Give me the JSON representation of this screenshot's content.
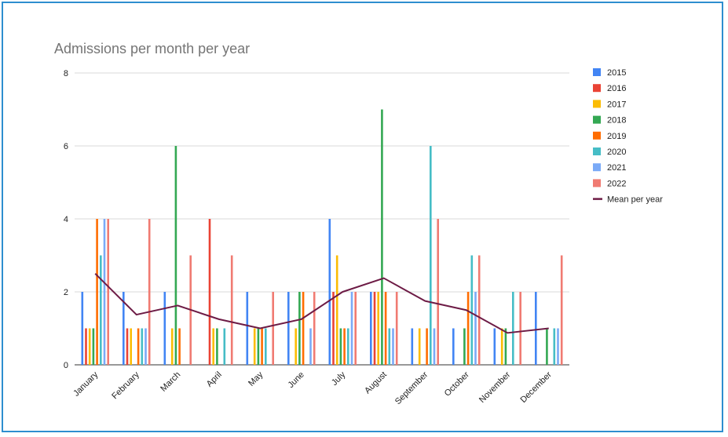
{
  "chart_data": {
    "type": "bar",
    "title": "Admissions per month per year",
    "xlabel": "",
    "ylabel": "",
    "ylim": [
      0,
      8
    ],
    "yticks": [
      "0",
      "2",
      "4",
      "6",
      "8"
    ],
    "grid": true,
    "legend_position": "right",
    "categories": [
      "January",
      "February",
      "March",
      "April",
      "May",
      "June",
      "July",
      "August",
      "September",
      "October",
      "November",
      "December"
    ],
    "series": [
      {
        "name": "2015",
        "color": "#4285f4",
        "values": [
          2,
          2,
          2,
          0,
          2,
          2,
          4,
          2,
          1,
          1,
          1,
          2
        ]
      },
      {
        "name": "2016",
        "color": "#ea4335",
        "values": [
          1,
          1,
          0,
          4,
          0,
          0,
          2,
          2,
          0,
          0,
          0,
          0
        ]
      },
      {
        "name": "2017",
        "color": "#fbbc04",
        "values": [
          1,
          1,
          1,
          1,
          1,
          1,
          3,
          2,
          1,
          0,
          1,
          0
        ]
      },
      {
        "name": "2018",
        "color": "#34a853",
        "values": [
          1,
          0,
          6,
          1,
          1,
          2,
          1,
          7,
          0,
          1,
          1,
          1
        ]
      },
      {
        "name": "2019",
        "color": "#ff6d01",
        "values": [
          4,
          1,
          1,
          0,
          1,
          2,
          1,
          2,
          1,
          2,
          0,
          0
        ]
      },
      {
        "name": "2020",
        "color": "#46bdc6",
        "values": [
          3,
          1,
          0,
          1,
          1,
          0,
          1,
          1,
          6,
          3,
          2,
          1
        ]
      },
      {
        "name": "2021",
        "color": "#7baaf7",
        "values": [
          4,
          1,
          0,
          0,
          0,
          1,
          2,
          1,
          1,
          2,
          0,
          1
        ]
      },
      {
        "name": "2022",
        "color": "#f07b72",
        "values": [
          4,
          4,
          3,
          3,
          2,
          2,
          2,
          2,
          4,
          3,
          2,
          3
        ]
      }
    ],
    "line_series": {
      "name": "Mean per year",
      "color": "#6d1b45",
      "values": [
        2.5,
        1.375,
        1.625,
        1.25,
        1.0,
        1.25,
        2.0,
        2.375,
        1.75,
        1.5,
        0.875,
        1.0
      ]
    }
  }
}
